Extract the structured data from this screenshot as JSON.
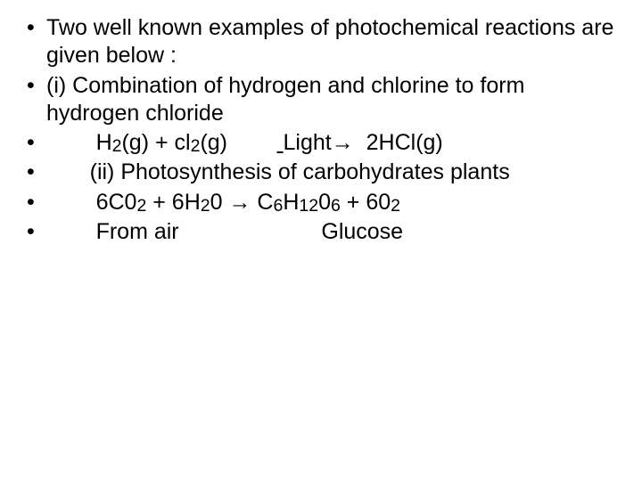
{
  "slide": {
    "font_family": "Arial",
    "font_size_pt": 25,
    "text_color": "#000000",
    "background_color": "#ffffff",
    "bullets": [
      {
        "text": "Two well known examples of photochemical reactions are given below :"
      },
      {
        "text": " (i) Combination of hydrogen and chlorine to form hydrogen chloride"
      },
      {
        "equation": {
          "prefix": "        H",
          "sub1": "2",
          "mid1": "(g) + cl",
          "sub2": "2",
          "mid2": "(g)        ",
          "underline": " ",
          "mid3": "Light→  2HCl(g)"
        }
      },
      {
        "text": "       (ii) Photosynthesis of carbohydrates plants"
      },
      {
        "equation2": {
          "p1": "        6C0",
          "s1": "2",
          "p2": " + 6H",
          "s2": "2",
          "p3": "0 → C",
          "s3": "6",
          "p4": "H",
          "s4": "12",
          "p5": "0",
          "s5": "6",
          "p6": " + 60",
          "s6": "2"
        }
      },
      {
        "text": "        From air                       Glucose"
      }
    ]
  }
}
